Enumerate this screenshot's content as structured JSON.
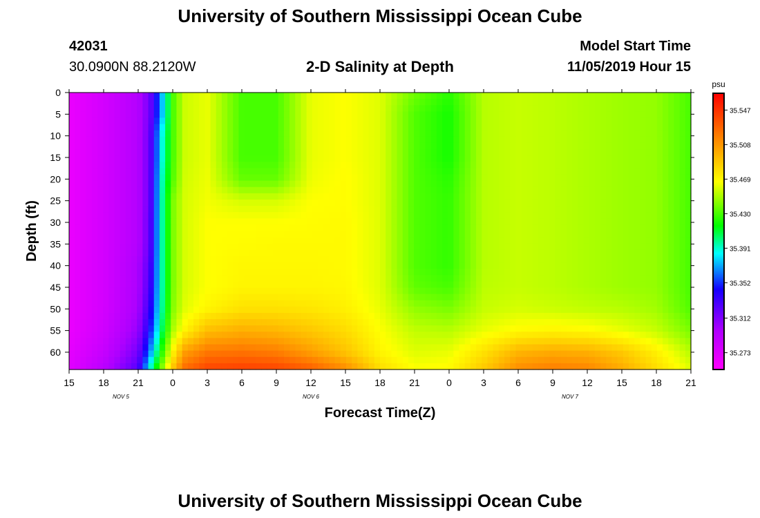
{
  "header": {
    "title": "University of Southern Mississippi Ocean Cube",
    "footer_title": "University of Southern Mississippi Ocean Cube",
    "station_id": "42031",
    "station_coords": "30.0900N 88.2120W",
    "model_start_label": "Model Start Time",
    "model_start_value": "11/05/2019 Hour 15"
  },
  "chart_data": {
    "type": "heatmap",
    "title": "2-D Salinity at Depth",
    "xlabel": "Forecast Time(Z)",
    "ylabel": "Depth (ft)",
    "x_tick_labels": [
      "15",
      "18",
      "21",
      "0",
      "3",
      "6",
      "9",
      "12",
      "15",
      "18",
      "21",
      "0",
      "3",
      "6",
      "9",
      "12",
      "15",
      "18",
      "21"
    ],
    "x_forecast_hours": [
      0,
      3,
      6,
      9,
      12,
      15,
      18,
      21,
      24,
      27,
      30,
      33,
      36,
      39,
      42,
      45,
      48,
      51,
      54
    ],
    "date_labels": [
      {
        "text": "NOV 5",
        "hour": 4.5
      },
      {
        "text": "NOV 6",
        "hour": 21
      },
      {
        "text": "NOV 7",
        "hour": 43.5
      }
    ],
    "y_tick_labels": [
      "0",
      "5",
      "10",
      "15",
      "20",
      "25",
      "30",
      "35",
      "40",
      "45",
      "50",
      "55",
      "60"
    ],
    "y_ticks": [
      0,
      5,
      10,
      15,
      20,
      25,
      30,
      35,
      40,
      45,
      50,
      55,
      60
    ],
    "ylim": [
      0,
      64
    ],
    "xlim": [
      0,
      54
    ],
    "colorbar": {
      "unit": "psu",
      "min": 35.254,
      "max": 35.566,
      "tick_labels": [
        "35.547",
        "35.508",
        "35.469",
        "35.430",
        "35.391",
        "35.352",
        "35.312",
        "35.273"
      ],
      "tick_values": [
        35.547,
        35.508,
        35.469,
        35.43,
        35.391,
        35.352,
        35.312,
        35.273
      ]
    },
    "salinity_grid": {
      "depths_ft": [
        0,
        5,
        10,
        15,
        20,
        25,
        30,
        35,
        40,
        45,
        50,
        55,
        60,
        64
      ],
      "hours": [
        0,
        3,
        6,
        7,
        8,
        9,
        10,
        12,
        15,
        18,
        21,
        24,
        27,
        30,
        33,
        36,
        39,
        42,
        45,
        48,
        51,
        54
      ],
      "psu": [
        [
          35.265,
          35.278,
          35.295,
          35.315,
          35.37,
          35.43,
          35.456,
          35.462,
          35.43,
          35.43,
          35.462,
          35.466,
          35.46,
          35.438,
          35.424,
          35.452,
          35.455,
          35.453,
          35.45,
          35.447,
          35.445,
          35.43
        ],
        [
          35.265,
          35.278,
          35.295,
          35.315,
          35.37,
          35.43,
          35.456,
          35.462,
          35.43,
          35.43,
          35.462,
          35.466,
          35.46,
          35.432,
          35.42,
          35.452,
          35.455,
          35.453,
          35.45,
          35.447,
          35.445,
          35.43
        ],
        [
          35.265,
          35.278,
          35.295,
          35.318,
          35.385,
          35.43,
          35.456,
          35.462,
          35.43,
          35.43,
          35.462,
          35.466,
          35.46,
          35.432,
          35.42,
          35.452,
          35.455,
          35.453,
          35.45,
          35.447,
          35.445,
          35.43
        ],
        [
          35.265,
          35.278,
          35.295,
          35.318,
          35.385,
          35.43,
          35.456,
          35.462,
          35.43,
          35.43,
          35.462,
          35.466,
          35.46,
          35.432,
          35.42,
          35.452,
          35.455,
          35.453,
          35.45,
          35.447,
          35.445,
          35.43
        ],
        [
          35.265,
          35.278,
          35.295,
          35.318,
          35.39,
          35.432,
          35.457,
          35.463,
          35.436,
          35.436,
          35.463,
          35.467,
          35.46,
          35.432,
          35.424,
          35.452,
          35.455,
          35.453,
          35.45,
          35.447,
          35.445,
          35.43
        ],
        [
          35.265,
          35.278,
          35.295,
          35.318,
          35.392,
          35.44,
          35.458,
          35.464,
          35.458,
          35.458,
          35.466,
          35.467,
          35.46,
          35.432,
          35.426,
          35.452,
          35.455,
          35.453,
          35.45,
          35.447,
          35.445,
          35.43
        ],
        [
          35.265,
          35.278,
          35.295,
          35.32,
          35.392,
          35.44,
          35.458,
          35.466,
          35.466,
          35.466,
          35.467,
          35.468,
          35.46,
          35.432,
          35.426,
          35.452,
          35.455,
          35.453,
          35.45,
          35.447,
          35.445,
          35.43
        ],
        [
          35.265,
          35.278,
          35.295,
          35.32,
          35.392,
          35.44,
          35.458,
          35.466,
          35.467,
          35.468,
          35.468,
          35.468,
          35.46,
          35.432,
          35.426,
          35.452,
          35.455,
          35.453,
          35.45,
          35.447,
          35.445,
          35.43
        ],
        [
          35.265,
          35.278,
          35.298,
          35.325,
          35.392,
          35.44,
          35.458,
          35.466,
          35.469,
          35.469,
          35.469,
          35.468,
          35.46,
          35.432,
          35.426,
          35.452,
          35.455,
          35.453,
          35.45,
          35.447,
          35.445,
          35.43
        ],
        [
          35.265,
          35.278,
          35.298,
          35.328,
          35.392,
          35.44,
          35.458,
          35.466,
          35.47,
          35.47,
          35.47,
          35.469,
          35.46,
          35.435,
          35.43,
          35.453,
          35.455,
          35.453,
          35.45,
          35.447,
          35.445,
          35.43
        ],
        [
          35.265,
          35.278,
          35.3,
          35.335,
          35.394,
          35.442,
          35.46,
          35.47,
          35.478,
          35.478,
          35.476,
          35.472,
          35.462,
          35.445,
          35.44,
          35.455,
          35.458,
          35.456,
          35.454,
          35.452,
          35.448,
          35.432
        ],
        [
          35.265,
          35.28,
          35.305,
          35.345,
          35.402,
          35.45,
          35.47,
          35.492,
          35.498,
          35.495,
          35.488,
          35.48,
          35.466,
          35.454,
          35.452,
          35.462,
          35.468,
          35.47,
          35.468,
          35.462,
          35.455,
          35.44
        ],
        [
          35.268,
          35.285,
          35.315,
          35.365,
          35.42,
          35.47,
          35.505,
          35.52,
          35.522,
          35.518,
          35.505,
          35.49,
          35.47,
          35.46,
          35.462,
          35.478,
          35.496,
          35.5,
          35.498,
          35.488,
          35.472,
          35.452
        ],
        [
          35.27,
          35.292,
          35.325,
          35.39,
          35.44,
          35.49,
          35.525,
          35.54,
          35.542,
          35.54,
          35.53,
          35.512,
          35.48,
          35.466,
          35.468,
          35.488,
          35.512,
          35.518,
          35.515,
          35.5,
          35.48,
          35.46
        ]
      ]
    }
  }
}
